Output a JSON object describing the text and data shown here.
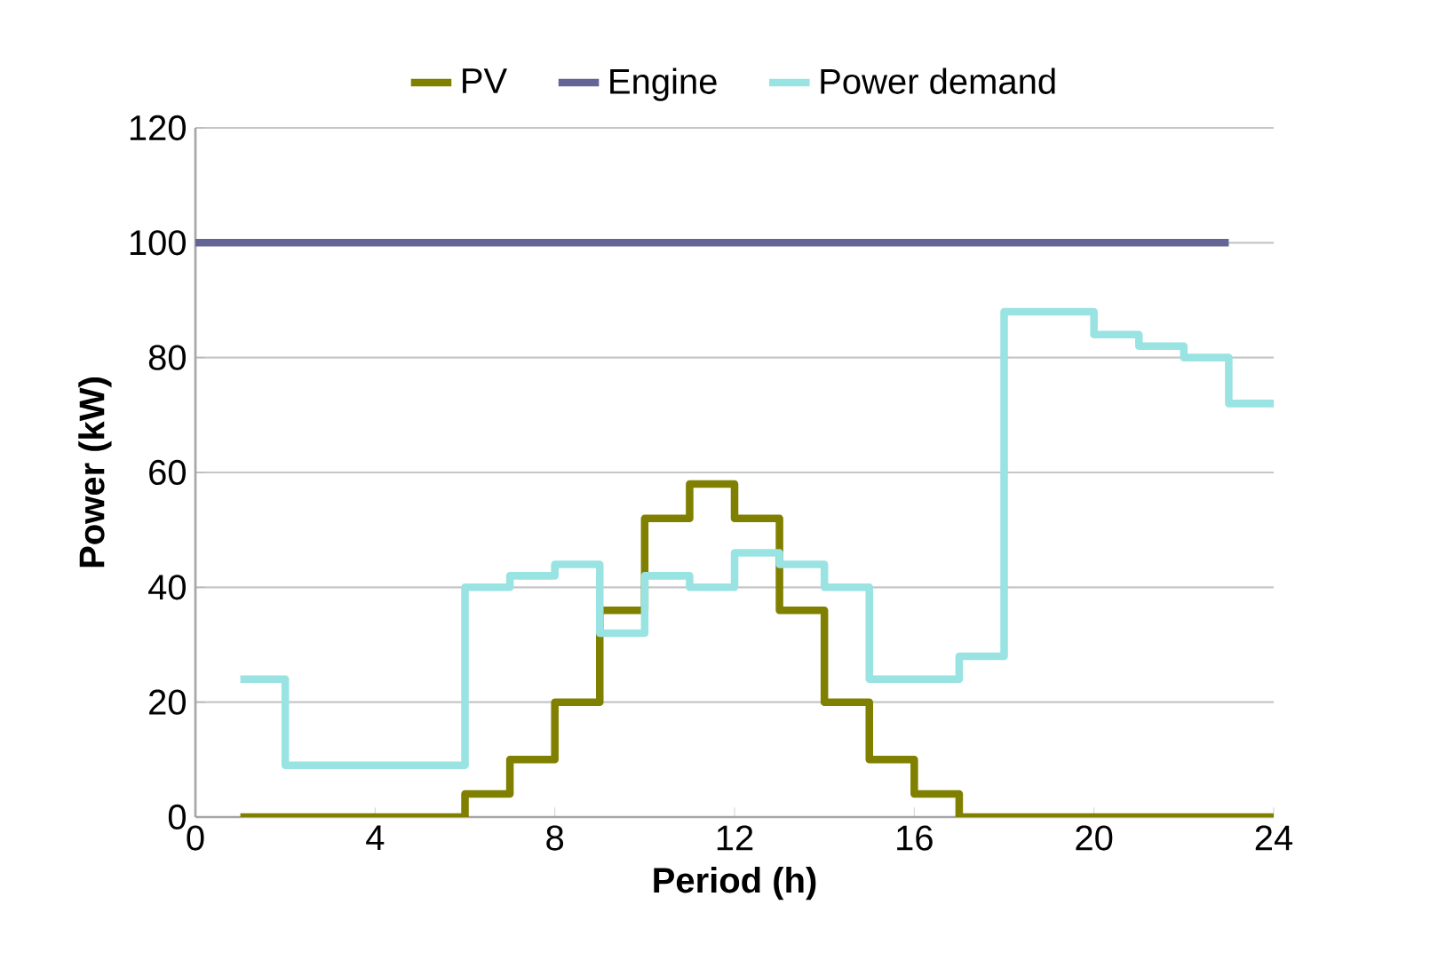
{
  "chart_data": {
    "type": "step",
    "xlabel": "Period (h)",
    "ylabel": "Power (kW)",
    "xlim": [
      0,
      24
    ],
    "xticks": [
      0,
      4,
      8,
      12,
      16,
      20,
      24
    ],
    "ylim": [
      0,
      120
    ],
    "yticks": [
      0,
      20,
      40,
      60,
      80,
      100,
      120
    ],
    "grid": "y",
    "legend": "top",
    "series": [
      {
        "name": "PV",
        "color": "#808000",
        "x": [
          1,
          2,
          3,
          4,
          5,
          6,
          7,
          8,
          9,
          10,
          11,
          12,
          13,
          14,
          15,
          16,
          17,
          18,
          19,
          20,
          21,
          22,
          23,
          24
        ],
        "values": [
          0,
          0,
          0,
          0,
          0,
          4,
          10,
          20,
          36,
          52,
          58,
          52,
          36,
          20,
          10,
          4,
          0,
          0,
          0,
          0,
          0,
          0,
          0,
          0
        ]
      },
      {
        "name": "Engine",
        "type": "line",
        "color": "#646496",
        "x": [
          0,
          23
        ],
        "values": [
          100,
          100
        ]
      },
      {
        "name": "Power demand",
        "color": "#99e3e3",
        "x": [
          1,
          2,
          3,
          4,
          5,
          6,
          7,
          8,
          9,
          10,
          11,
          12,
          13,
          14,
          15,
          16,
          17,
          18,
          19,
          20,
          21,
          22,
          23,
          24
        ],
        "values": [
          24,
          9,
          9,
          9,
          9,
          40,
          42,
          44,
          32,
          42,
          40,
          46,
          44,
          40,
          24,
          24,
          28,
          88,
          88,
          84,
          82,
          80,
          72,
          72
        ]
      }
    ]
  }
}
